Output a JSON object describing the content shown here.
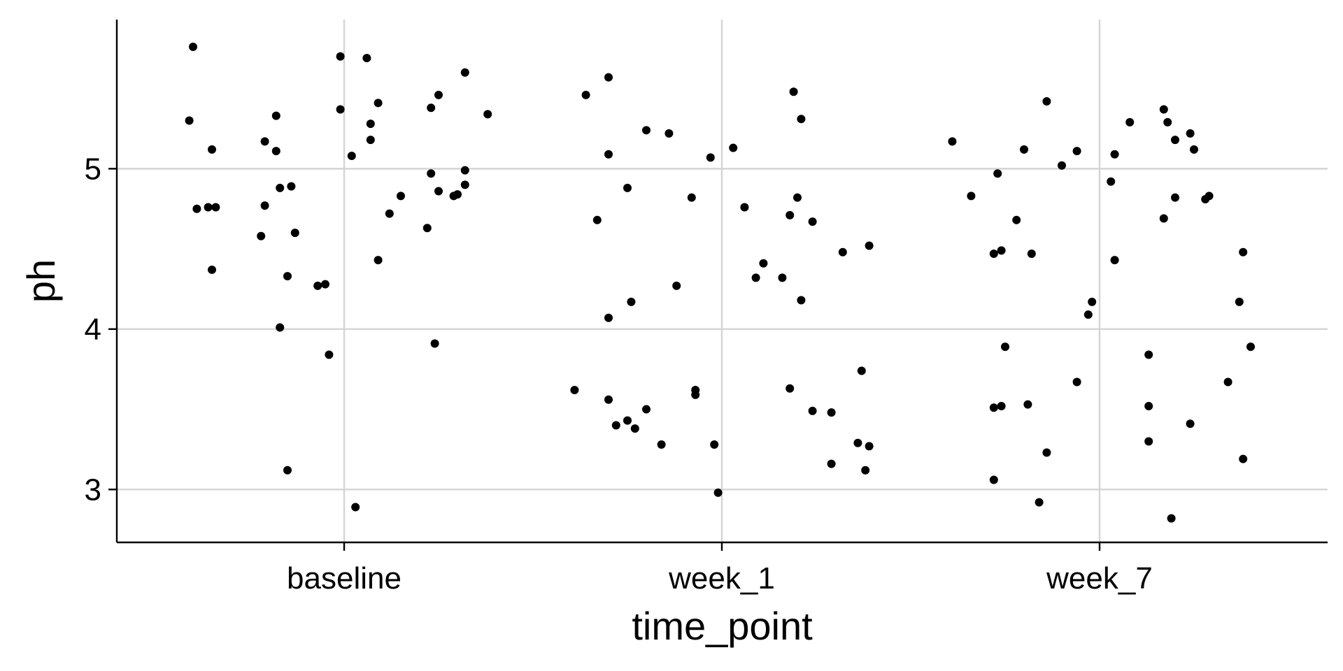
{
  "chart_data": {
    "type": "scatter",
    "subtype": "jitter",
    "title": "",
    "xlabel": "time_point",
    "ylabel": "ph",
    "categories": [
      "baseline",
      "week_1",
      "week_7"
    ],
    "yticks": [
      3,
      4,
      5
    ],
    "ylim": [
      2.67,
      5.93
    ],
    "grid": true,
    "legend": "none",
    "point_color": "#000000",
    "points": [
      {
        "cat": 0,
        "jitter": -0.4,
        "y": 5.76
      },
      {
        "cat": 0,
        "jitter": -0.41,
        "y": 5.3
      },
      {
        "cat": 0,
        "jitter": -0.35,
        "y": 5.12
      },
      {
        "cat": 0,
        "jitter": -0.39,
        "y": 4.75
      },
      {
        "cat": 0,
        "jitter": -0.36,
        "y": 4.76
      },
      {
        "cat": 0,
        "jitter": -0.34,
        "y": 4.76
      },
      {
        "cat": 0,
        "jitter": -0.35,
        "y": 4.37
      },
      {
        "cat": 0,
        "jitter": -0.21,
        "y": 5.17
      },
      {
        "cat": 0,
        "jitter": -0.18,
        "y": 5.33
      },
      {
        "cat": 0,
        "jitter": -0.18,
        "y": 5.11
      },
      {
        "cat": 0,
        "jitter": -0.17,
        "y": 4.88
      },
      {
        "cat": 0,
        "jitter": -0.14,
        "y": 4.89
      },
      {
        "cat": 0,
        "jitter": -0.21,
        "y": 4.77
      },
      {
        "cat": 0,
        "jitter": -0.22,
        "y": 4.58
      },
      {
        "cat": 0,
        "jitter": -0.13,
        "y": 4.6
      },
      {
        "cat": 0,
        "jitter": -0.15,
        "y": 4.33
      },
      {
        "cat": 0,
        "jitter": -0.17,
        "y": 4.01
      },
      {
        "cat": 0,
        "jitter": -0.15,
        "y": 3.12
      },
      {
        "cat": 0,
        "jitter": -0.07,
        "y": 4.27
      },
      {
        "cat": 0,
        "jitter": -0.05,
        "y": 4.28
      },
      {
        "cat": 0,
        "jitter": -0.04,
        "y": 3.84
      },
      {
        "cat": 0,
        "jitter": -0.01,
        "y": 5.7
      },
      {
        "cat": 0,
        "jitter": -0.01,
        "y": 5.37
      },
      {
        "cat": 0,
        "jitter": 0.02,
        "y": 5.08
      },
      {
        "cat": 0,
        "jitter": 0.03,
        "y": 2.89
      },
      {
        "cat": 0,
        "jitter": 0.06,
        "y": 5.69
      },
      {
        "cat": 0,
        "jitter": 0.07,
        "y": 5.28
      },
      {
        "cat": 0,
        "jitter": 0.07,
        "y": 5.18
      },
      {
        "cat": 0,
        "jitter": 0.09,
        "y": 5.41
      },
      {
        "cat": 0,
        "jitter": 0.09,
        "y": 4.43
      },
      {
        "cat": 0,
        "jitter": 0.12,
        "y": 4.72
      },
      {
        "cat": 0,
        "jitter": 0.15,
        "y": 4.83
      },
      {
        "cat": 0,
        "jitter": 0.23,
        "y": 5.38
      },
      {
        "cat": 0,
        "jitter": 0.25,
        "y": 5.46
      },
      {
        "cat": 0,
        "jitter": 0.23,
        "y": 4.97
      },
      {
        "cat": 0,
        "jitter": 0.25,
        "y": 4.86
      },
      {
        "cat": 0,
        "jitter": 0.29,
        "y": 4.83
      },
      {
        "cat": 0,
        "jitter": 0.3,
        "y": 4.84
      },
      {
        "cat": 0,
        "jitter": 0.32,
        "y": 4.99
      },
      {
        "cat": 0,
        "jitter": 0.32,
        "y": 4.9
      },
      {
        "cat": 0,
        "jitter": 0.22,
        "y": 4.63
      },
      {
        "cat": 0,
        "jitter": 0.24,
        "y": 3.91
      },
      {
        "cat": 0,
        "jitter": 0.32,
        "y": 5.6
      },
      {
        "cat": 0,
        "jitter": 0.38,
        "y": 5.34
      },
      {
        "cat": 1,
        "jitter": -0.36,
        "y": 5.46
      },
      {
        "cat": 1,
        "jitter": -0.3,
        "y": 5.57
      },
      {
        "cat": 1,
        "jitter": -0.33,
        "y": 4.68
      },
      {
        "cat": 1,
        "jitter": -0.3,
        "y": 5.09
      },
      {
        "cat": 1,
        "jitter": -0.25,
        "y": 4.88
      },
      {
        "cat": 1,
        "jitter": -0.24,
        "y": 4.17
      },
      {
        "cat": 1,
        "jitter": -0.3,
        "y": 4.07
      },
      {
        "cat": 1,
        "jitter": -0.39,
        "y": 3.62
      },
      {
        "cat": 1,
        "jitter": -0.3,
        "y": 3.56
      },
      {
        "cat": 1,
        "jitter": -0.28,
        "y": 3.4
      },
      {
        "cat": 1,
        "jitter": -0.25,
        "y": 3.43
      },
      {
        "cat": 1,
        "jitter": -0.23,
        "y": 3.38
      },
      {
        "cat": 1,
        "jitter": -0.2,
        "y": 3.5
      },
      {
        "cat": 1,
        "jitter": -0.2,
        "y": 5.24
      },
      {
        "cat": 1,
        "jitter": -0.14,
        "y": 5.22
      },
      {
        "cat": 1,
        "jitter": -0.12,
        "y": 4.27
      },
      {
        "cat": 1,
        "jitter": -0.16,
        "y": 3.28
      },
      {
        "cat": 1,
        "jitter": -0.08,
        "y": 4.82
      },
      {
        "cat": 1,
        "jitter": -0.07,
        "y": 3.62
      },
      {
        "cat": 1,
        "jitter": -0.07,
        "y": 3.59
      },
      {
        "cat": 1,
        "jitter": -0.03,
        "y": 5.07
      },
      {
        "cat": 1,
        "jitter": -0.02,
        "y": 3.28
      },
      {
        "cat": 1,
        "jitter": -0.01,
        "y": 2.98
      },
      {
        "cat": 1,
        "jitter": 0.03,
        "y": 5.13
      },
      {
        "cat": 1,
        "jitter": 0.06,
        "y": 4.76
      },
      {
        "cat": 1,
        "jitter": 0.09,
        "y": 4.32
      },
      {
        "cat": 1,
        "jitter": 0.11,
        "y": 4.41
      },
      {
        "cat": 1,
        "jitter": 0.16,
        "y": 4.32
      },
      {
        "cat": 1,
        "jitter": 0.18,
        "y": 4.71
      },
      {
        "cat": 1,
        "jitter": 0.19,
        "y": 5.48
      },
      {
        "cat": 1,
        "jitter": 0.21,
        "y": 5.31
      },
      {
        "cat": 1,
        "jitter": 0.2,
        "y": 4.82
      },
      {
        "cat": 1,
        "jitter": 0.21,
        "y": 4.18
      },
      {
        "cat": 1,
        "jitter": 0.24,
        "y": 4.67
      },
      {
        "cat": 1,
        "jitter": 0.18,
        "y": 3.63
      },
      {
        "cat": 1,
        "jitter": 0.24,
        "y": 3.49
      },
      {
        "cat": 1,
        "jitter": 0.29,
        "y": 3.48
      },
      {
        "cat": 1,
        "jitter": 0.29,
        "y": 3.16
      },
      {
        "cat": 1,
        "jitter": 0.32,
        "y": 4.48
      },
      {
        "cat": 1,
        "jitter": 0.36,
        "y": 3.29
      },
      {
        "cat": 1,
        "jitter": 0.37,
        "y": 3.74
      },
      {
        "cat": 1,
        "jitter": 0.38,
        "y": 3.12
      },
      {
        "cat": 1,
        "jitter": 0.39,
        "y": 3.27
      },
      {
        "cat": 1,
        "jitter": 0.39,
        "y": 4.52
      },
      {
        "cat": 2,
        "jitter": -0.39,
        "y": 5.17
      },
      {
        "cat": 2,
        "jitter": -0.34,
        "y": 4.83
      },
      {
        "cat": 2,
        "jitter": -0.28,
        "y": 4.47
      },
      {
        "cat": 2,
        "jitter": -0.27,
        "y": 4.97
      },
      {
        "cat": 2,
        "jitter": -0.26,
        "y": 4.49
      },
      {
        "cat": 2,
        "jitter": -0.26,
        "y": 3.52
      },
      {
        "cat": 2,
        "jitter": -0.25,
        "y": 3.89
      },
      {
        "cat": 2,
        "jitter": -0.28,
        "y": 3.51
      },
      {
        "cat": 2,
        "jitter": -0.28,
        "y": 3.06
      },
      {
        "cat": 2,
        "jitter": -0.22,
        "y": 4.68
      },
      {
        "cat": 2,
        "jitter": -0.2,
        "y": 5.12
      },
      {
        "cat": 2,
        "jitter": -0.18,
        "y": 4.47
      },
      {
        "cat": 2,
        "jitter": -0.19,
        "y": 3.53
      },
      {
        "cat": 2,
        "jitter": -0.14,
        "y": 5.42
      },
      {
        "cat": 2,
        "jitter": -0.14,
        "y": 3.23
      },
      {
        "cat": 2,
        "jitter": -0.16,
        "y": 2.92
      },
      {
        "cat": 2,
        "jitter": -0.1,
        "y": 5.02
      },
      {
        "cat": 2,
        "jitter": -0.06,
        "y": 5.11
      },
      {
        "cat": 2,
        "jitter": -0.06,
        "y": 3.67
      },
      {
        "cat": 2,
        "jitter": -0.02,
        "y": 4.17
      },
      {
        "cat": 2,
        "jitter": -0.03,
        "y": 4.09
      },
      {
        "cat": 2,
        "jitter": 0.03,
        "y": 4.92
      },
      {
        "cat": 2,
        "jitter": 0.04,
        "y": 5.09
      },
      {
        "cat": 2,
        "jitter": 0.04,
        "y": 4.43
      },
      {
        "cat": 2,
        "jitter": 0.08,
        "y": 5.29
      },
      {
        "cat": 2,
        "jitter": 0.13,
        "y": 3.3
      },
      {
        "cat": 2,
        "jitter": 0.13,
        "y": 3.52
      },
      {
        "cat": 2,
        "jitter": 0.13,
        "y": 3.84
      },
      {
        "cat": 2,
        "jitter": 0.17,
        "y": 5.37
      },
      {
        "cat": 2,
        "jitter": 0.18,
        "y": 5.29
      },
      {
        "cat": 2,
        "jitter": 0.2,
        "y": 5.18
      },
      {
        "cat": 2,
        "jitter": 0.2,
        "y": 4.82
      },
      {
        "cat": 2,
        "jitter": 0.17,
        "y": 4.69
      },
      {
        "cat": 2,
        "jitter": 0.19,
        "y": 2.82
      },
      {
        "cat": 2,
        "jitter": 0.24,
        "y": 5.22
      },
      {
        "cat": 2,
        "jitter": 0.25,
        "y": 5.12
      },
      {
        "cat": 2,
        "jitter": 0.24,
        "y": 3.41
      },
      {
        "cat": 2,
        "jitter": 0.28,
        "y": 4.81
      },
      {
        "cat": 2,
        "jitter": 0.29,
        "y": 4.83
      },
      {
        "cat": 2,
        "jitter": 0.34,
        "y": 3.67
      },
      {
        "cat": 2,
        "jitter": 0.37,
        "y": 4.17
      },
      {
        "cat": 2,
        "jitter": 0.38,
        "y": 4.48
      },
      {
        "cat": 2,
        "jitter": 0.4,
        "y": 3.89
      },
      {
        "cat": 2,
        "jitter": 0.38,
        "y": 3.19
      }
    ]
  }
}
